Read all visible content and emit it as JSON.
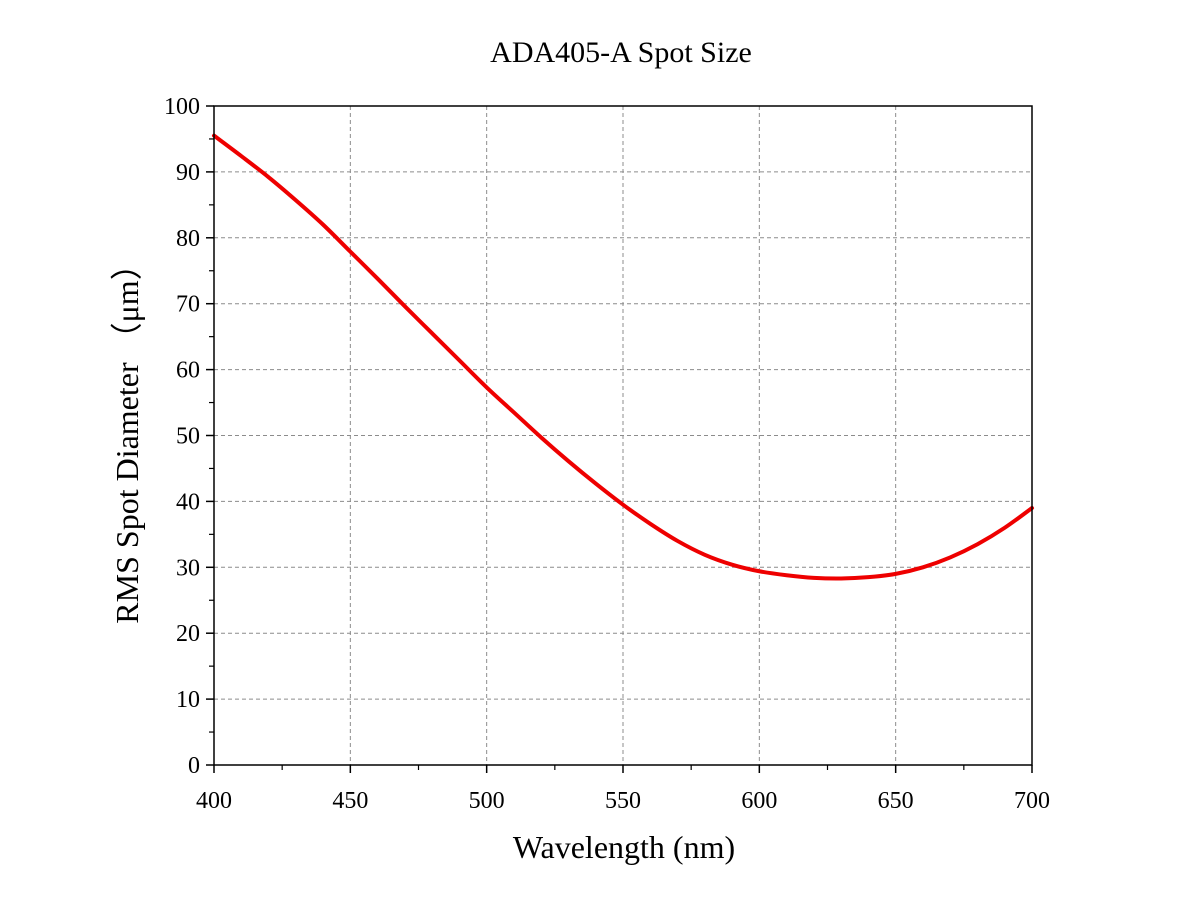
{
  "chart_data": {
    "type": "line",
    "title": "ADA405-A Spot Size",
    "xlabel": "Wavelength (nm)",
    "ylabel": "RMS Spot Diameter （μm）",
    "xlim": [
      400,
      700
    ],
    "ylim": [
      0,
      100
    ],
    "xticks": [
      400,
      450,
      500,
      550,
      600,
      650,
      700
    ],
    "yticks": [
      0,
      10,
      20,
      30,
      40,
      50,
      60,
      70,
      80,
      90,
      100
    ],
    "xtick_labels": [
      "400",
      "450",
      "500",
      "550",
      "600",
      "650",
      "700"
    ],
    "ytick_labels": [
      "0",
      "10",
      "20",
      "30",
      "40",
      "50",
      "60",
      "70",
      "80",
      "90",
      "100"
    ],
    "grid": true,
    "series": [
      {
        "color": "#ee0000",
        "x": [
          400,
          410,
          420,
          430,
          440,
          450,
          460,
          470,
          480,
          490,
          500,
          510,
          520,
          530,
          540,
          550,
          560,
          570,
          580,
          590,
          600,
          610,
          620,
          630,
          640,
          650,
          660,
          670,
          680,
          690,
          700
        ],
        "y": [
          95.5,
          92.4,
          89.2,
          85.7,
          82.0,
          77.9,
          73.8,
          69.6,
          65.5,
          61.4,
          57.3,
          53.5,
          49.7,
          46.1,
          42.7,
          39.5,
          36.6,
          34.0,
          31.9,
          30.4,
          29.4,
          28.8,
          28.4,
          28.3,
          28.5,
          29.0,
          30.0,
          31.5,
          33.5,
          36.0,
          39.0
        ]
      }
    ]
  }
}
